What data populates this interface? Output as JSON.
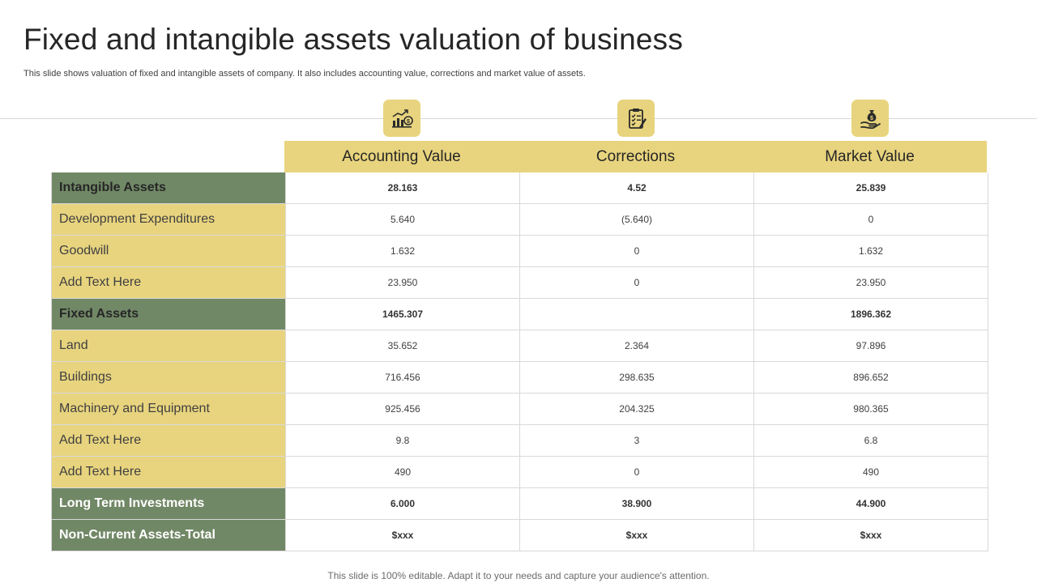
{
  "slide": {
    "title": "Fixed and intangible assets valuation of business",
    "subtitle": "This slide shows valuation of fixed  and intangible assets of company. It also includes accounting value, corrections and market value of assets.",
    "footer": "This slide is 100% editable. Adapt it to your needs and capture your audience's attention."
  },
  "icons": [
    "chart-money-icon",
    "clipboard-checklist-icon",
    "money-bag-hand-icon"
  ],
  "colors": {
    "accent_yellow": "#e8d47e",
    "accent_green": "#718866"
  },
  "table": {
    "columns": [
      "Accounting Value",
      "Corrections",
      "Market Value"
    ],
    "rows": [
      {
        "label": "Intangible Assets",
        "values": [
          "28.163",
          "4.52",
          "25.839"
        ]
      },
      {
        "label": "Development Expenditures",
        "values": [
          "5.640",
          "(5.640)",
          "0"
        ]
      },
      {
        "label": "Goodwill",
        "values": [
          "1.632",
          "0",
          "1.632"
        ]
      },
      {
        "label": "Add Text Here",
        "values": [
          "23.950",
          "0",
          "23.950"
        ]
      },
      {
        "label": "Fixed Assets",
        "values": [
          "1465.307",
          "",
          "1896.362"
        ]
      },
      {
        "label": "Land",
        "values": [
          "35.652",
          "2.364",
          "97.896"
        ]
      },
      {
        "label": "Buildings",
        "values": [
          "716.456",
          "298.635",
          "896.652"
        ]
      },
      {
        "label": "Machinery and Equipment",
        "values": [
          "925.456",
          "204.325",
          "980.365"
        ]
      },
      {
        "label": "Add Text Here",
        "values": [
          "9.8",
          "3",
          "6.8"
        ]
      },
      {
        "label": "Add Text Here",
        "values": [
          "490",
          "0",
          "490"
        ]
      },
      {
        "label": "Long Term Investments",
        "values": [
          "6.000",
          "38.900",
          "44.900"
        ]
      },
      {
        "label": "Non-Current Assets-Total",
        "values": [
          "$xxx",
          "$xxx",
          "$xxx"
        ]
      }
    ]
  }
}
